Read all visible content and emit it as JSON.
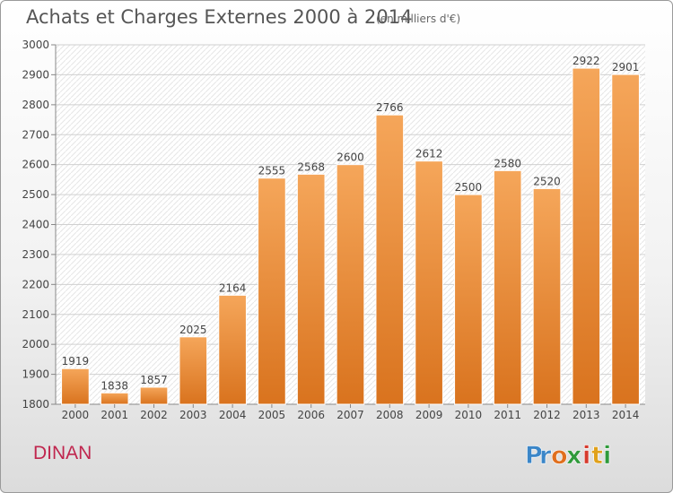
{
  "title": "Achats et Charges Externes 2000 à 2014",
  "subtitle": "(en milliers d'€)",
  "city": "DINAN",
  "logo": {
    "text": "Proxiti",
    "letters": [
      "P",
      "r",
      "o",
      "x",
      "i",
      "t",
      "i"
    ],
    "colors": [
      "#3b86c8",
      "#3b86c8",
      "#e06f1e",
      "#2f9a3b",
      "#d63a2d",
      "#e0a11b",
      "#2f9a3b"
    ]
  },
  "colors": {
    "bar_top": "#f5a65a",
    "bar_bottom": "#d9731e",
    "title": "#555555",
    "city": "#c0264e"
  },
  "chart_data": {
    "type": "bar",
    "categories": [
      "2000",
      "2001",
      "2002",
      "2003",
      "2004",
      "2005",
      "2006",
      "2007",
      "2008",
      "2009",
      "2010",
      "2011",
      "2012",
      "2013",
      "2014"
    ],
    "values": [
      1919,
      1838,
      1857,
      2025,
      2164,
      2555,
      2568,
      2600,
      2766,
      2612,
      2500,
      2580,
      2520,
      2922,
      2901
    ],
    "title": "Achats et Charges Externes 2000 à 2014",
    "xlabel": "",
    "ylabel": "",
    "ylim": [
      1800,
      3000
    ],
    "yticks": [
      1800,
      1900,
      2000,
      2100,
      2200,
      2300,
      2400,
      2500,
      2600,
      2700,
      2800,
      2900,
      3000
    ],
    "grid": true,
    "legend": "none"
  }
}
